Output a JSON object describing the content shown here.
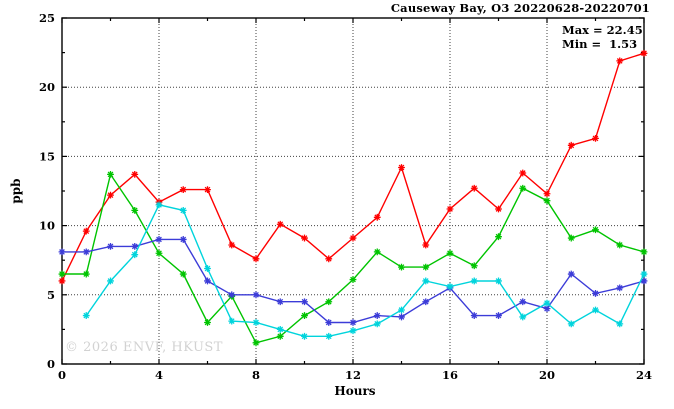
{
  "chart_data": {
    "type": "line",
    "title": "Causeway Bay, O3 20220628-20220701",
    "xlabel": "Hours",
    "ylabel": "ppb",
    "xlim": [
      0,
      24
    ],
    "ylim": [
      0,
      25
    ],
    "xticks": [
      0,
      4,
      8,
      12,
      16,
      20,
      24
    ],
    "xminor_ticks": [
      2,
      6,
      10,
      14,
      18,
      22
    ],
    "yticks": [
      0,
      5,
      10,
      15,
      20,
      25
    ],
    "yminor_ticks": [
      2.5,
      7.5,
      12.5,
      17.5,
      22.5
    ],
    "grid": true,
    "legend_position": "none",
    "marker": "star",
    "x": [
      0,
      1,
      2,
      3,
      4,
      5,
      6,
      7,
      8,
      9,
      10,
      11,
      12,
      13,
      14,
      15,
      16,
      17,
      18,
      19,
      20,
      21,
      22,
      23,
      24
    ],
    "series": [
      {
        "name": "series-red",
        "color": "#ff0000",
        "values": [
          6.0,
          9.6,
          12.2,
          13.7,
          11.7,
          12.6,
          12.6,
          8.6,
          7.6,
          10.1,
          9.1,
          7.6,
          9.1,
          10.6,
          14.2,
          8.6,
          11.2,
          12.7,
          11.2,
          13.8,
          12.3,
          15.8,
          16.3,
          21.9,
          22.45
        ]
      },
      {
        "name": "series-green",
        "color": "#00c400",
        "values": [
          6.5,
          6.5,
          13.7,
          11.1,
          8.0,
          6.5,
          3.0,
          4.9,
          1.53,
          2.0,
          3.5,
          4.5,
          6.1,
          8.1,
          7.0,
          7.0,
          8.0,
          7.1,
          9.2,
          12.7,
          11.8,
          9.1,
          9.7,
          8.6,
          8.1
        ]
      },
      {
        "name": "series-blue",
        "color": "#3c3cd8",
        "values": [
          8.1,
          8.1,
          8.5,
          8.5,
          9.0,
          9.0,
          6.0,
          5.0,
          5.0,
          4.5,
          4.5,
          3.0,
          3.0,
          3.5,
          3.4,
          4.5,
          5.5,
          3.5,
          3.5,
          4.5,
          4.0,
          6.5,
          5.1,
          5.5,
          6.0
        ]
      },
      {
        "name": "series-cyan",
        "color": "#00d4dc",
        "values": [
          null,
          3.5,
          6.0,
          7.9,
          11.5,
          11.1,
          6.9,
          3.1,
          3.0,
          2.5,
          2.0,
          2.0,
          2.4,
          2.9,
          3.9,
          6.0,
          5.6,
          6.0,
          6.0,
          3.4,
          4.4,
          2.9,
          3.9,
          2.9,
          6.5
        ]
      }
    ],
    "stats": {
      "max": 22.45,
      "min": 1.53,
      "max_text": "Max = 22.45",
      "min_text": "Min =  1.53"
    }
  },
  "watermark": "© 2026 ENVF, HKUST",
  "frame_color": "#000000",
  "grid_color": "#404040"
}
